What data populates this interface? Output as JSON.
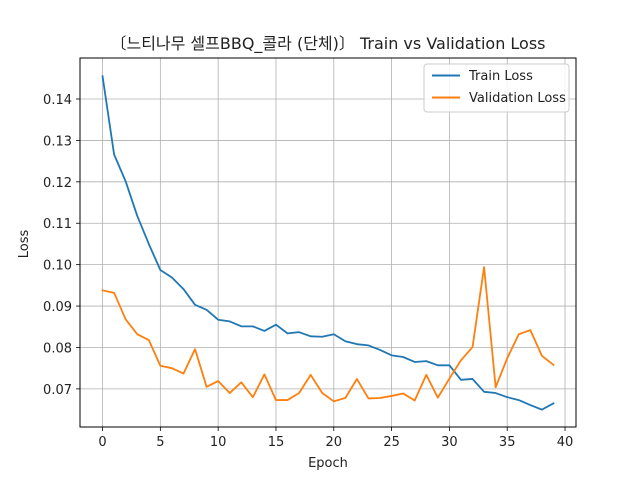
{
  "chart_data": {
    "type": "line",
    "title": "〔느티나무 셀프BBQ_콜라 (단체)〕 Train vs Validation Loss",
    "xlabel": "Epoch",
    "ylabel": "Loss",
    "xlim": [
      -1.95,
      40.95
    ],
    "ylim": [
      0.0608,
      0.1499
    ],
    "xticks": [
      0,
      5,
      10,
      15,
      20,
      25,
      30,
      35,
      40
    ],
    "yticks": [
      0.07,
      0.08,
      0.09,
      0.1,
      0.11,
      0.12,
      0.13,
      0.14
    ],
    "ytick_labels": [
      "0.07",
      "0.08",
      "0.09",
      "0.10",
      "0.11",
      "0.12",
      "0.13",
      "0.14"
    ],
    "grid": true,
    "legend_position": "top-right",
    "x": [
      0,
      1,
      2,
      3,
      4,
      5,
      6,
      7,
      8,
      9,
      10,
      11,
      12,
      13,
      14,
      15,
      16,
      17,
      18,
      19,
      20,
      21,
      22,
      23,
      24,
      25,
      26,
      27,
      28,
      29,
      30,
      31,
      32,
      33,
      34,
      35,
      36,
      37,
      38,
      39
    ],
    "series": [
      {
        "name": "Train Loss",
        "color": "#1f77b4",
        "values": [
          0.1455,
          0.1266,
          0.1201,
          0.1118,
          0.105,
          0.0987,
          0.0969,
          0.0941,
          0.0903,
          0.0891,
          0.0867,
          0.0863,
          0.0851,
          0.0851,
          0.084,
          0.0855,
          0.0834,
          0.0837,
          0.0827,
          0.0826,
          0.0832,
          0.0815,
          0.0808,
          0.0805,
          0.0794,
          0.0781,
          0.0777,
          0.0765,
          0.0767,
          0.0757,
          0.0757,
          0.0722,
          0.0724,
          0.0693,
          0.069,
          0.068,
          0.0673,
          0.0661,
          0.065,
          0.0665
        ]
      },
      {
        "name": "Validation Loss",
        "color": "#ff7f0e",
        "values": [
          0.0938,
          0.0932,
          0.0868,
          0.0832,
          0.0818,
          0.0756,
          0.075,
          0.0737,
          0.0796,
          0.0705,
          0.0719,
          0.069,
          0.0716,
          0.068,
          0.0735,
          0.0673,
          0.0673,
          0.069,
          0.0734,
          0.069,
          0.067,
          0.0678,
          0.0724,
          0.0677,
          0.0678,
          0.0683,
          0.0689,
          0.0672,
          0.0734,
          0.0679,
          0.0725,
          0.0769,
          0.0801,
          0.0994,
          0.0704,
          0.0774,
          0.0832,
          0.0842,
          0.078,
          0.0758
        ]
      }
    ]
  }
}
